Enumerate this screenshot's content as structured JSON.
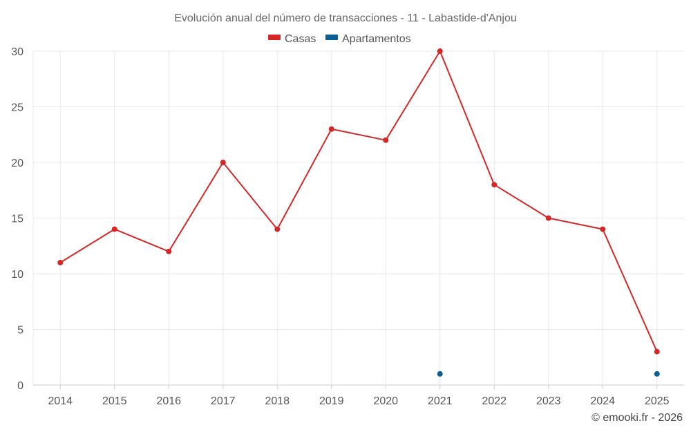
{
  "chart_data": {
    "type": "line",
    "title": "Evolución anual del número de transacciones - 11 - Labastide-d'Anjou",
    "categories": [
      "2014",
      "2015",
      "2016",
      "2017",
      "2018",
      "2019",
      "2020",
      "2021",
      "2022",
      "2023",
      "2024",
      "2025"
    ],
    "series": [
      {
        "name": "Casas",
        "color": "#d62728",
        "values": [
          11,
          14,
          12,
          20,
          14,
          23,
          22,
          30,
          18,
          15,
          14,
          3
        ]
      },
      {
        "name": "Apartamentos",
        "color": "#0b5e91",
        "values": [
          null,
          null,
          null,
          null,
          null,
          null,
          null,
          1,
          null,
          null,
          null,
          1
        ]
      }
    ],
    "ylim": [
      0,
      30
    ],
    "yticks": [
      0,
      5,
      10,
      15,
      20,
      25,
      30
    ],
    "xlabel": "",
    "ylabel": "",
    "grid": true,
    "legend_position": "top-center"
  },
  "credit": "© emooki.fr - 2026"
}
